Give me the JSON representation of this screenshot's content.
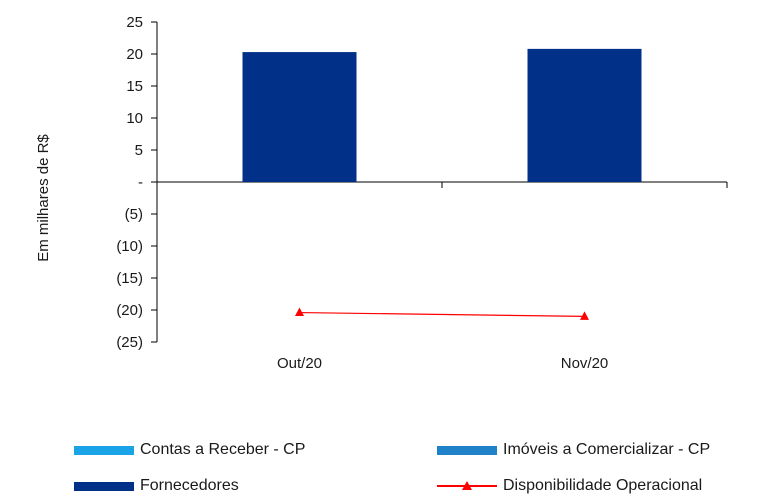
{
  "chart_data": {
    "type": "bar",
    "categories": [
      "Out/20",
      "Nov/20"
    ],
    "series": [
      {
        "name": "Contas a Receber  - CP",
        "kind": "bar",
        "color": "#1aa3e6",
        "values": [
          0,
          0
        ]
      },
      {
        "name": "Imóveis a Comercializar - CP",
        "kind": "bar",
        "color": "#1f82c8",
        "values": [
          0,
          0
        ]
      },
      {
        "name": "Fornecedores",
        "kind": "bar",
        "color": "#003087",
        "values": [
          20.3,
          20.8
        ]
      },
      {
        "name": "Disponibilidade Operacional",
        "kind": "line",
        "color": "#ff0000",
        "marker": "triangle",
        "values": [
          -20.4,
          -21.0
        ]
      }
    ],
    "title": "",
    "xlabel": "",
    "ylabel": "Em milhares de R$",
    "ylim": [
      -25,
      25
    ],
    "yticks": [
      25,
      20,
      15,
      10,
      5,
      0,
      -5,
      -10,
      -15,
      -20,
      -25
    ],
    "ytick_labels": [
      "25",
      "20",
      "15",
      "10",
      "5",
      "-",
      "(5)",
      "(10)",
      "(15)",
      "(20)",
      "(25)"
    ],
    "grid": false,
    "legend_position": "bottom"
  }
}
